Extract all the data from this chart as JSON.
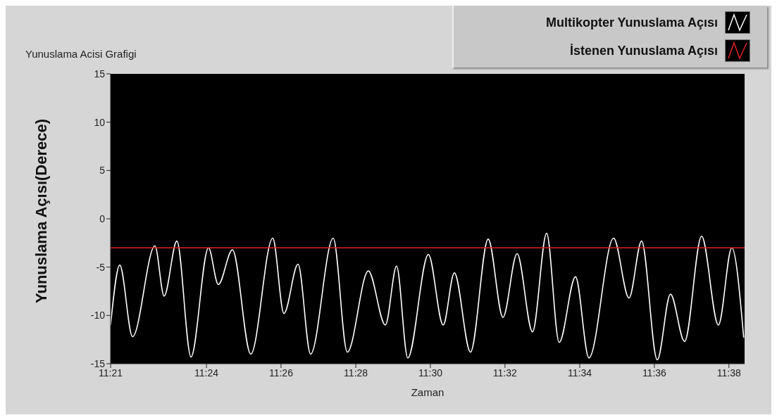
{
  "chart_data": {
    "type": "line",
    "title": "Yunuslama Acisi Grafigi",
    "xlabel": "Zaman",
    "ylabel": "Yunuslama Açısı(Derece)",
    "xlim": [
      11.3572,
      11.6403
    ],
    "xticks": [
      {
        "value": 11.3572,
        "label": "11:21"
      },
      {
        "value": 11.4,
        "label": "11:24"
      },
      {
        "value": 11.4333,
        "label": "11:26"
      },
      {
        "value": 11.4667,
        "label": "11:28"
      },
      {
        "value": 11.5,
        "label": "11:30"
      },
      {
        "value": 11.5333,
        "label": "11:32"
      },
      {
        "value": 11.5667,
        "label": "11:34"
      },
      {
        "value": 11.6,
        "label": "11:36"
      },
      {
        "value": 11.6333,
        "label": "11:38"
      }
    ],
    "ylim": [
      -15,
      15
    ],
    "yticks": [
      -15,
      -10,
      -5,
      0,
      5,
      10,
      15
    ],
    "legend": "top right",
    "series": [
      {
        "name": "Multikopter Yunuslama Açısı",
        "color": "#ffffff",
        "x": [
          11.3572,
          11.3613,
          11.367,
          11.377,
          11.3811,
          11.3868,
          11.3931,
          11.4009,
          11.4053,
          11.4116,
          11.4198,
          11.4296,
          11.4346,
          11.4409,
          11.4465,
          11.4566,
          11.4629,
          11.4723,
          11.4799,
          11.4849,
          11.4899,
          11.4991,
          11.5057,
          11.5107,
          11.5179,
          11.5258,
          11.5324,
          11.5387,
          11.5456,
          11.5519,
          11.5575,
          11.5648,
          11.5708,
          11.5818,
          11.5887,
          11.5943,
          11.6013,
          11.6072,
          11.6135,
          11.6211,
          11.6286,
          11.6346,
          11.6399
        ],
        "values": [
          -11,
          -4.8,
          -12.2,
          -2.8,
          -8,
          -2.3,
          -14.3,
          -3,
          -6.8,
          -3.2,
          -14,
          -2,
          -9.8,
          -4.7,
          -14,
          -2,
          -13.8,
          -5.4,
          -11,
          -4.9,
          -14.4,
          -3.7,
          -11,
          -5.6,
          -13.8,
          -2.1,
          -10.2,
          -3.6,
          -11.7,
          -1.5,
          -12.8,
          -6,
          -14.4,
          -2,
          -8.2,
          -2.3,
          -14.6,
          -7.8,
          -12.7,
          -1.8,
          -11,
          -3,
          -12.3
        ]
      },
      {
        "name": "İstenen Yunuslama Açısı",
        "color": "#e02020",
        "x": [
          11.3572,
          11.6403
        ],
        "values": [
          -3,
          -3
        ]
      }
    ]
  }
}
